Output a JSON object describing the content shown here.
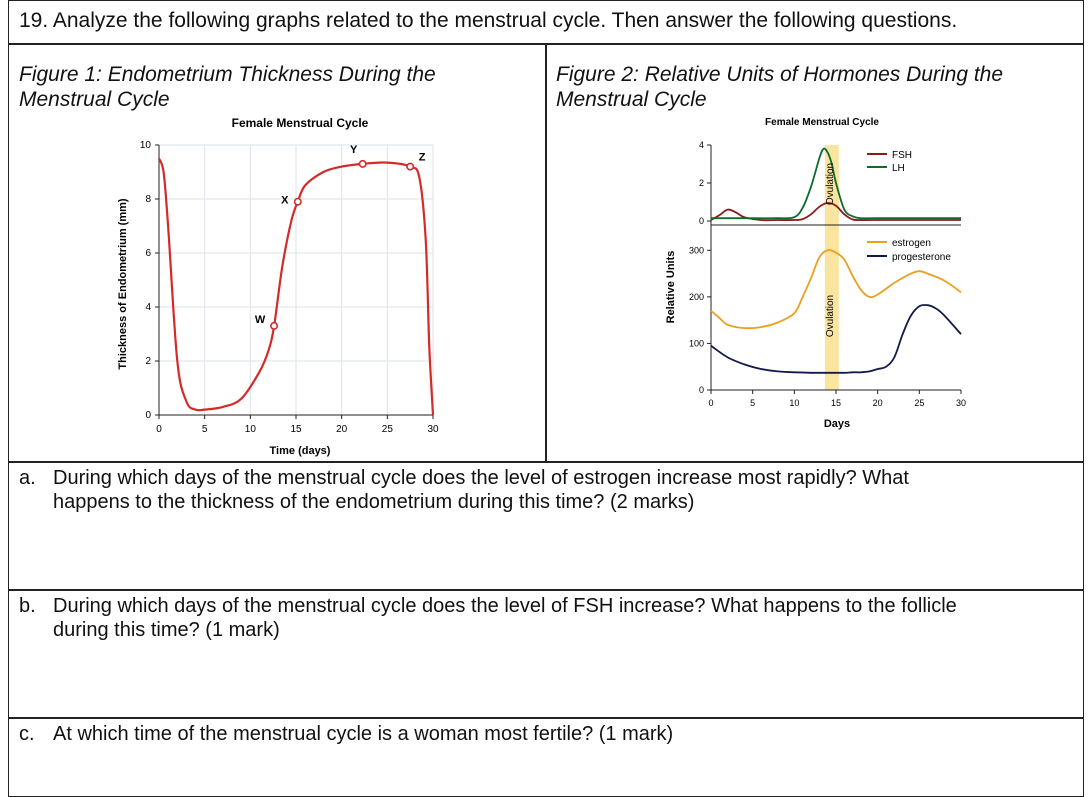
{
  "question": {
    "title": "19. Analyze the following graphs related to the menstrual cycle. Then answer the following questions."
  },
  "figure1": {
    "caption_line1": "Figure 1: Endometrium Thickness During the",
    "caption_line2": "Menstrual Cycle",
    "chart_title": "Female Menstrual Cycle",
    "ylabel": "Thickness of Endometrium (mm)",
    "xlabel": "Time (days)",
    "x_ticks": [
      "0",
      "5",
      "10",
      "15",
      "20",
      "25",
      "30"
    ],
    "y_ticks": [
      "0",
      "2",
      "4",
      "6",
      "8",
      "10"
    ],
    "points": [
      {
        "label": "W",
        "x": 12.6,
        "y": 3.3
      },
      {
        "label": "X",
        "x": 15.2,
        "y": 7.9
      },
      {
        "label": "Y",
        "x": 22.3,
        "y": 9.3
      },
      {
        "label": "Z",
        "x": 27.5,
        "y": 9.2
      }
    ]
  },
  "figure2": {
    "caption_line1": "Figure 2: Relative Units of Hormones During the",
    "caption_line2": "Menstrual Cycle",
    "chart_title": "Female Menstrual Cycle",
    "ylabel": "Relative Units",
    "xlabel": "Days",
    "x_ticks": [
      "0",
      "5",
      "10",
      "15",
      "20",
      "25",
      "30"
    ],
    "upper_y_ticks": [
      "0",
      "2",
      "4"
    ],
    "lower_y_ticks": [
      "0",
      "100",
      "200",
      "300"
    ],
    "ovulation_label": "Ovulation",
    "legend_upper": [
      "FSH",
      "LH"
    ],
    "legend_lower": [
      "estrogen",
      "progesterone"
    ]
  },
  "questions": [
    {
      "label": "a.",
      "line1": "During which days of the menstrual cycle does the level of estrogen increase most rapidly? What",
      "line2": "happens to the thickness of the endometrium during this time? (2 marks)"
    },
    {
      "label": "b.",
      "line1": "During which days of the menstrual cycle does the level of FSH increase? What happens to the follicle",
      "line2": "during this time? (1 mark)"
    },
    {
      "label": "c.",
      "line1": "At which time of the menstrual cycle is a woman most fertile? (1 mark)",
      "line2": ""
    }
  ],
  "chart_data": [
    {
      "type": "line",
      "title": "Female Menstrual Cycle",
      "xlabel": "Time (days)",
      "ylabel": "Thickness of Endometrium (mm)",
      "xlim": [
        0,
        30
      ],
      "ylim": [
        0,
        10
      ],
      "series": [
        {
          "x": [
            0,
            0.5,
            1,
            2,
            3,
            4,
            5,
            7,
            9,
            11,
            12,
            12.6,
            13.5,
            14.5,
            15.2,
            16,
            18,
            20,
            22.3,
            25,
            27.5,
            28.5,
            29.2,
            29.6,
            30
          ],
          "y": [
            9.5,
            9.0,
            7.0,
            2.0,
            0.5,
            0.2,
            0.2,
            0.3,
            0.6,
            1.6,
            2.4,
            3.3,
            5.5,
            7.2,
            7.9,
            8.5,
            9.0,
            9.2,
            9.3,
            9.35,
            9.2,
            8.8,
            6.5,
            2.5,
            0
          ]
        }
      ],
      "colors": {
        "line": "#d42a2a"
      }
    },
    {
      "type": "line",
      "title": "Female Menstrual Cycle",
      "xlabel": "Days",
      "ylabel": "Relative Units",
      "xlim": [
        0,
        30
      ],
      "upper_ylim": [
        0,
        4
      ],
      "lower_ylim": [
        0,
        350
      ],
      "upper_series": [
        {
          "name": "FSH",
          "x": [
            0,
            1,
            2,
            3,
            4,
            6,
            8,
            10,
            11,
            12,
            13,
            14,
            15,
            16,
            17,
            18,
            20,
            22,
            25,
            30
          ],
          "y": [
            0.05,
            0.3,
            0.6,
            0.45,
            0.2,
            0.05,
            0.05,
            0.05,
            0.1,
            0.35,
            0.75,
            0.95,
            0.8,
            0.35,
            0.08,
            0.05,
            0.05,
            0.05,
            0.05,
            0.05
          ]
        },
        {
          "name": "LH",
          "x": [
            0,
            5,
            8,
            10,
            11,
            12,
            13,
            13.5,
            14,
            14.5,
            15,
            16,
            17,
            18,
            20,
            25,
            30
          ],
          "y": [
            0.15,
            0.15,
            0.15,
            0.2,
            0.7,
            1.8,
            3.3,
            3.8,
            3.6,
            3.0,
            2.0,
            0.6,
            0.25,
            0.15,
            0.15,
            0.15,
            0.15
          ]
        }
      ],
      "lower_series": [
        {
          "name": "estrogen",
          "x": [
            0,
            1,
            2,
            4,
            6,
            8,
            10,
            11,
            12,
            13,
            14,
            15,
            16,
            17,
            18,
            19,
            20,
            22,
            24,
            25,
            26,
            28,
            30
          ],
          "y": [
            170,
            155,
            140,
            133,
            135,
            145,
            165,
            200,
            240,
            285,
            300,
            295,
            280,
            245,
            215,
            200,
            205,
            230,
            250,
            255,
            250,
            235,
            210
          ]
        },
        {
          "name": "progesterone",
          "x": [
            0,
            2,
            4,
            6,
            8,
            10,
            12,
            14,
            16,
            17,
            18,
            19,
            20,
            21,
            22,
            23,
            24,
            25,
            26,
            27,
            28,
            30
          ],
          "y": [
            95,
            70,
            55,
            45,
            40,
            38,
            37,
            37,
            37,
            38,
            38,
            40,
            45,
            50,
            70,
            120,
            160,
            180,
            182,
            175,
            160,
            120
          ]
        }
      ],
      "ovulation_day": 14.5,
      "colors": {
        "FSH": "#8b1a1a",
        "LH": "#0e6b2a",
        "estrogen": "#e8a020",
        "progesterone": "#131a4a",
        "ovulation": "#f9e4a0"
      }
    }
  ]
}
